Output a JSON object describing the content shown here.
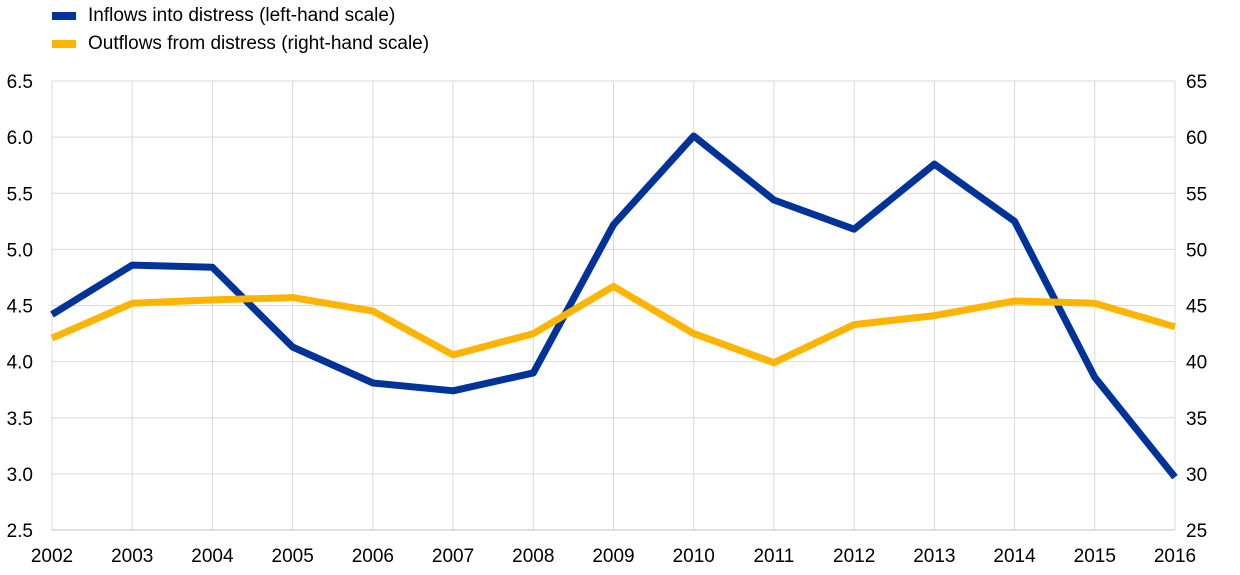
{
  "chart_data": {
    "type": "line",
    "x": [
      "2002",
      "2003",
      "2004",
      "2005",
      "2006",
      "2007",
      "2008",
      "2009",
      "2010",
      "2011",
      "2012",
      "2013",
      "2014",
      "2015",
      "2016"
    ],
    "series": [
      {
        "name": "Inflows into distress (left-hand scale)",
        "axis": "left",
        "color": "#003399",
        "values": [
          4.42,
          4.86,
          4.84,
          4.13,
          3.81,
          3.74,
          3.9,
          5.22,
          6.01,
          5.44,
          5.18,
          5.76,
          5.25,
          3.86,
          2.97
        ]
      },
      {
        "name": "Outflows from distress (right-hand scale)",
        "axis": "right",
        "color": "#FFB400",
        "values": [
          42.1,
          45.2,
          45.5,
          45.7,
          44.5,
          40.6,
          42.5,
          46.7,
          42.5,
          39.9,
          43.3,
          44.1,
          45.4,
          45.2,
          43.1
        ]
      }
    ],
    "y_left": {
      "ylim": [
        2.5,
        6.5
      ],
      "ticks": [
        "2.5",
        "3.0",
        "3.5",
        "4.0",
        "4.5",
        "5.0",
        "5.5",
        "6.0",
        "6.5"
      ]
    },
    "y_right": {
      "ylim": [
        25,
        65
      ],
      "ticks": [
        "25",
        "30",
        "35",
        "40",
        "45",
        "50",
        "55",
        "60",
        "65"
      ]
    },
    "grid": true,
    "legend": "top-left",
    "title": "",
    "xlabel": "",
    "ylabel": ""
  }
}
